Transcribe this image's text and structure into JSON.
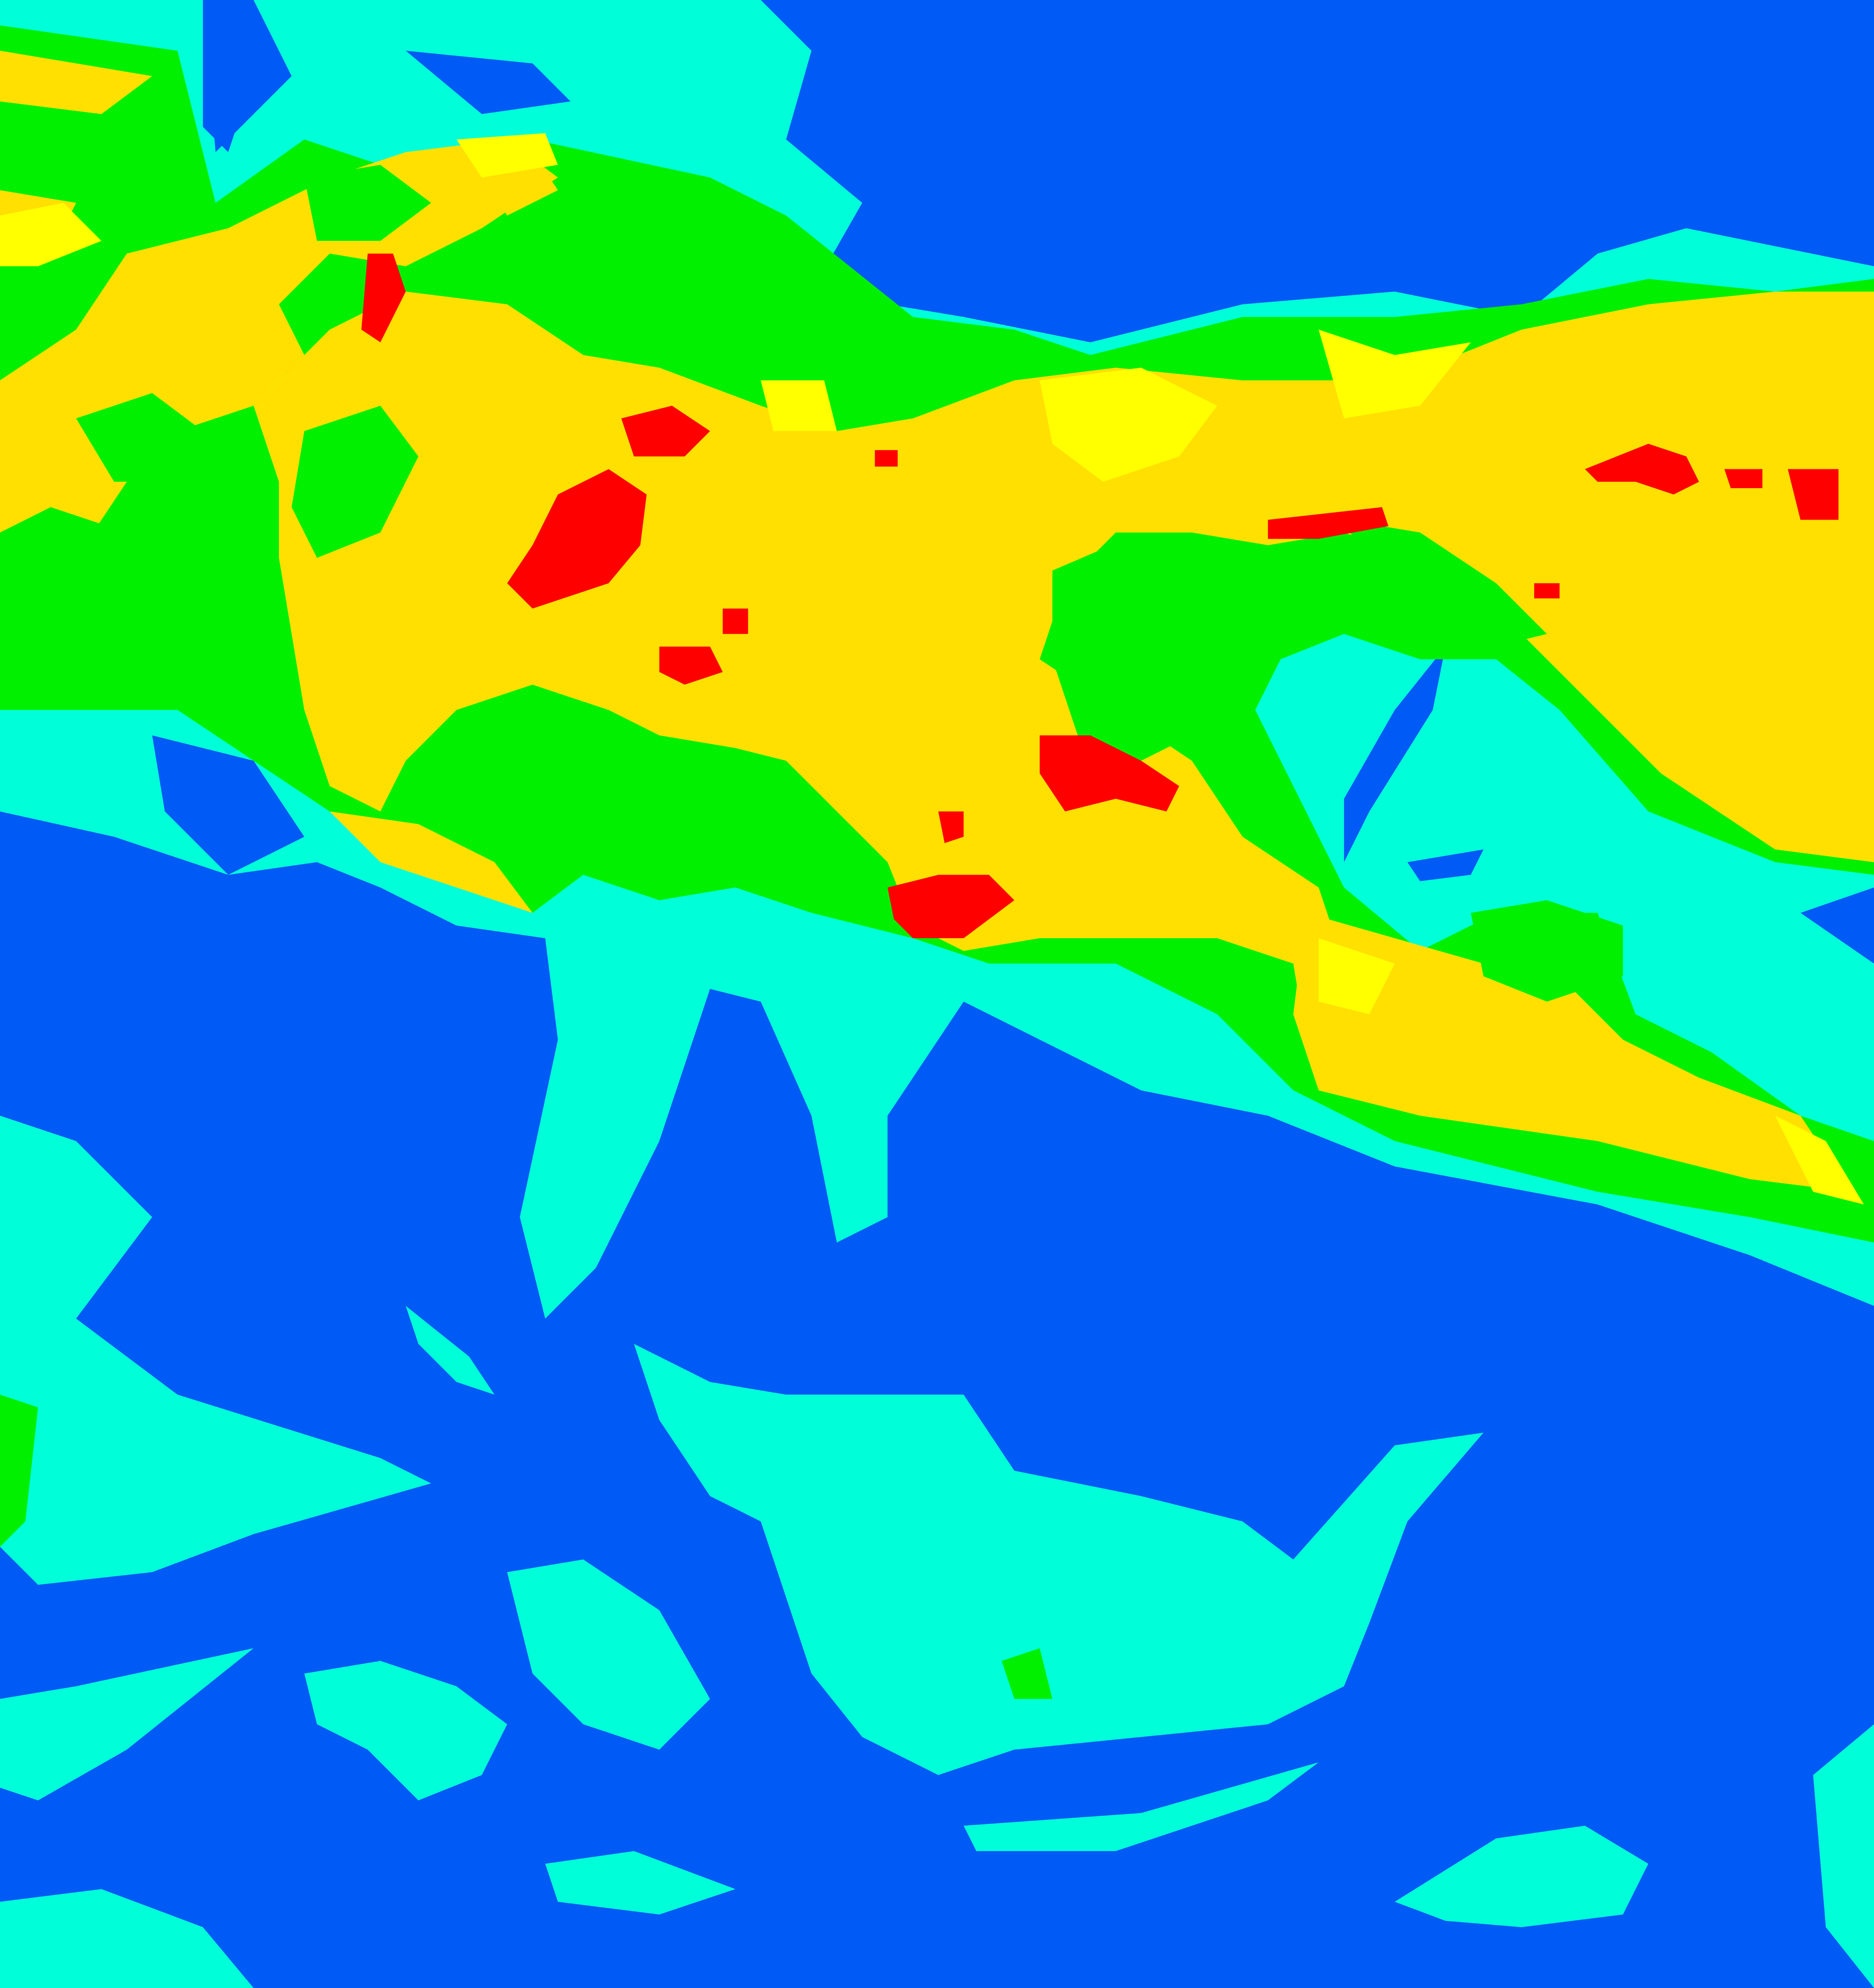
{
  "map": {
    "type": "classified-raster",
    "colors": {
      "class_1": "#005af5",
      "class_2": "#00ffd8",
      "class_3": "#00f000",
      "class_4": "#ffff00",
      "class_5": "#ffe000",
      "class_6": "#ff0000"
    }
  }
}
